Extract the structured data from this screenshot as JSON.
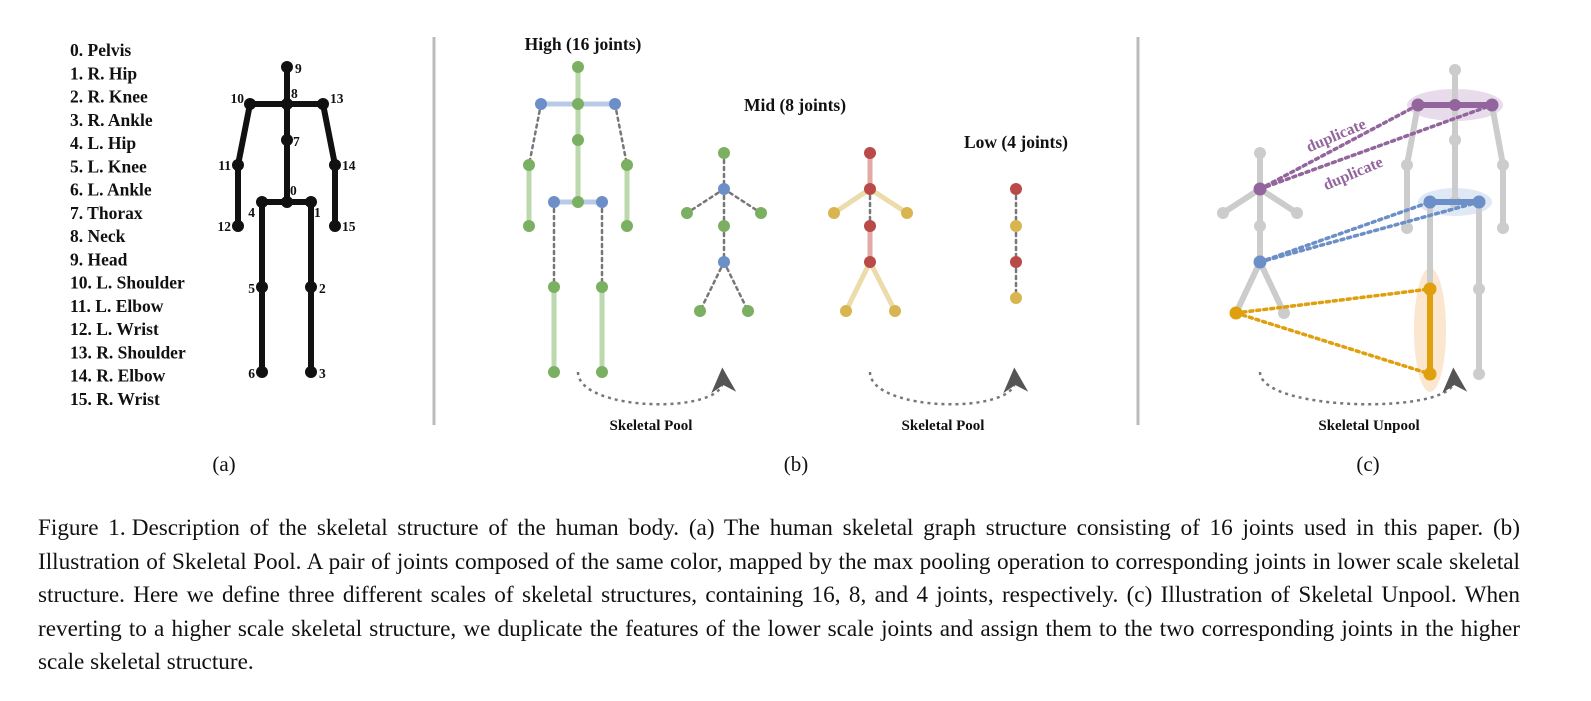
{
  "panel_a": {
    "joint_list": [
      "0. Pelvis",
      "1. R. Hip",
      "2. R. Knee",
      "3. R. Ankle",
      "4. L. Hip",
      "5. L. Knee",
      "6. L. Ankle",
      "7. Thorax",
      "8. Neck",
      "9. Head",
      "10. L. Shoulder",
      "11. L. Elbow",
      "12. L. Wrist",
      "13. R. Shoulder",
      "14. R. Elbow",
      "15. R. Wrist"
    ],
    "joint_numbers": [
      "0",
      "1",
      "2",
      "3",
      "4",
      "5",
      "6",
      "7",
      "8",
      "9",
      "10",
      "11",
      "12",
      "13",
      "14",
      "15"
    ],
    "sublabel": "(a)"
  },
  "panel_b": {
    "high_title": "High (16 joints)",
    "mid_title": "Mid (8 joints)",
    "low_title": "Low (4 joints)",
    "pool_label_1": "Skeletal Pool",
    "pool_label_2": "Skeletal Pool",
    "sublabel": "(b)"
  },
  "panel_c": {
    "duplicate_1": "duplicate",
    "duplicate_2": "duplicate",
    "unpool_label": "Skeletal Unpool",
    "sublabel": "(c)"
  },
  "colors": {
    "black": "#111111",
    "green": "#7bb062",
    "green_light": "#bcd9ad",
    "blue": "#6b8fc6",
    "blue_light": "#b8cbe6",
    "red": "#b94a48",
    "red_light": "#e2a9a6",
    "yellow": "#d8b54f",
    "yellow_light": "#ecdcab",
    "purple": "#93659d",
    "purple_light": "#e8dcec",
    "orange": "#e0a00e",
    "orange_light": "#fbe6cf",
    "gray": "#cccccc",
    "divider": "#bbbbbb",
    "dotted": "#777777"
  },
  "caption": {
    "label": "Figure 1.",
    "text": "Description of the skeletal structure of the human body. (a) The human skeletal graph structure consisting of 16 joints used in this paper. (b) Illustration of Skeletal Pool. A pair of joints composed of the same color, mapped by the max pooling operation to corresponding joints in lower scale skeletal structure. Here we define three different scales of skeletal structures, containing 16, 8, and 4 joints, respectively. (c) Illustration of Skeletal Unpool. When reverting to a higher scale skeletal structure, we duplicate the features of the lower scale joints and assign them to the two corresponding joints in the higher scale skeletal structure."
  }
}
